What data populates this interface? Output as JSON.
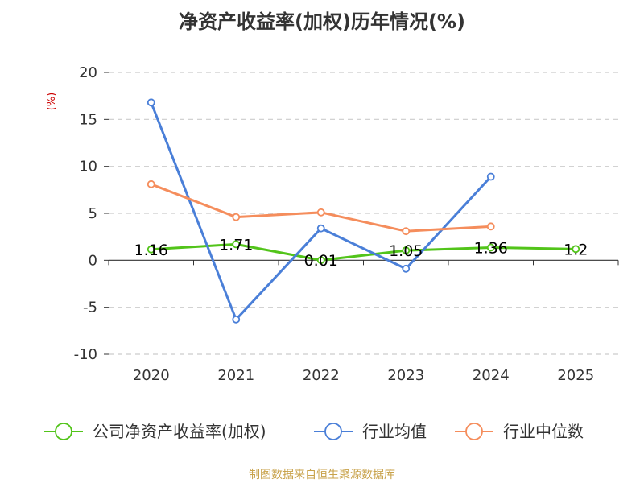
{
  "chart_data": {
    "type": "line",
    "title": "净资产收益率(加权)历年情况(%)",
    "unit_label": "(%)",
    "categories": [
      "2020",
      "2021",
      "2022",
      "2023",
      "2024",
      "2025"
    ],
    "yticks": [
      20,
      15,
      10,
      5,
      0,
      -5,
      -10
    ],
    "ylim": [
      -10,
      20
    ],
    "grid": true,
    "legend_position": "bottom",
    "series": [
      {
        "name": "公司净资产收益率(加权)",
        "color": "#52c41a",
        "values": [
          1.16,
          1.71,
          0.01,
          1.05,
          1.36,
          1.2
        ],
        "labels": [
          "1.16",
          "1.71",
          "0.01",
          "1.05",
          "1.36",
          "1.2"
        ]
      },
      {
        "name": "行业均值",
        "color": "#4a7fd8",
        "values": [
          16.8,
          -6.3,
          3.4,
          -0.9,
          8.9,
          null
        ]
      },
      {
        "name": "行业中位数",
        "color": "#f58d5c",
        "values": [
          8.1,
          4.6,
          5.1,
          3.1,
          3.6,
          null
        ]
      }
    ],
    "source": "制图数据来自恒生聚源数据库"
  }
}
